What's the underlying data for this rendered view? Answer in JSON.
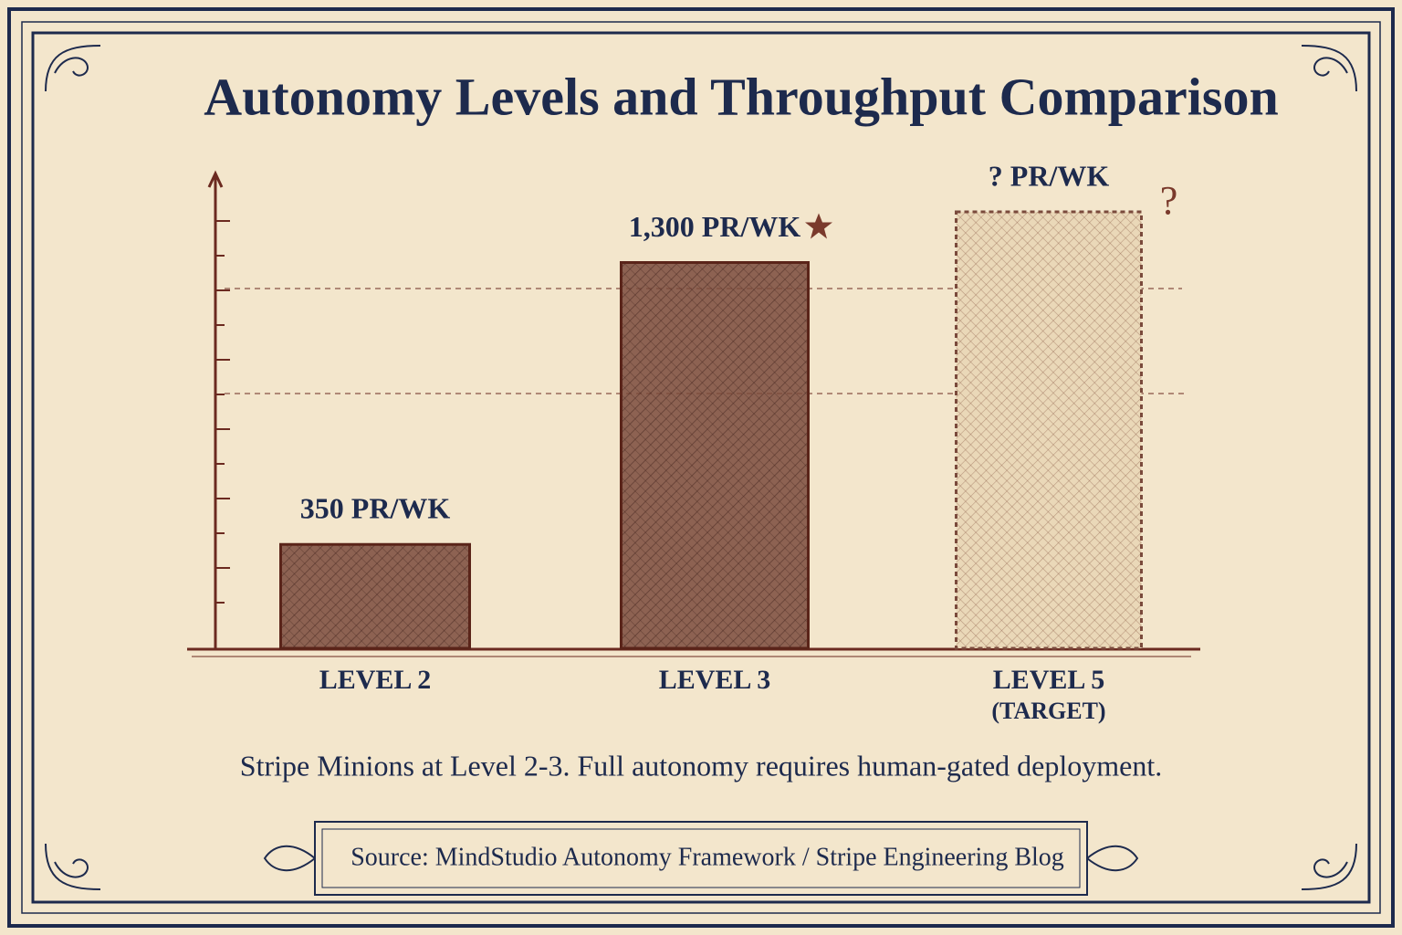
{
  "chart_data": {
    "type": "bar",
    "title": "Autonomy Levels and Throughput Comparison",
    "categories": [
      "LEVEL 2",
      "LEVEL 3",
      "LEVEL 5 (TARGET)"
    ],
    "values": [
      350,
      1300,
      null
    ],
    "value_labels": [
      "350 PR/WK",
      "1,300 PR/WK",
      "? PR/WK"
    ],
    "color": "#7a4a3c",
    "ylim": [
      0,
      1600
    ],
    "note": "Stripe Minions at Level 2-3. Full autonomy requires human-gated deployment.",
    "source": "Source: MindStudio Autonomy Framework / Stripe Engineering Blog"
  }
}
